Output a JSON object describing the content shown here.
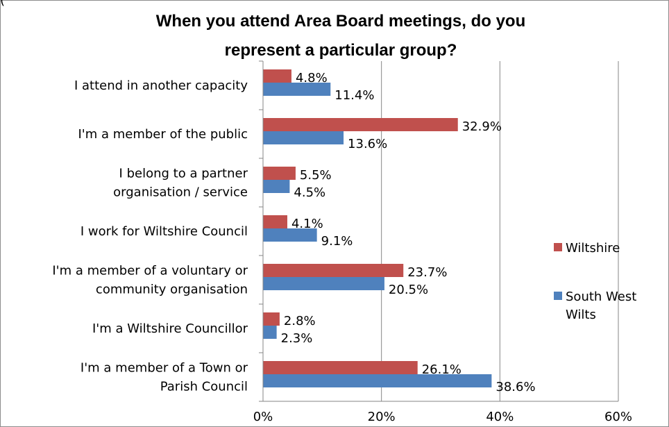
{
  "chart_data": {
    "type": "bar",
    "orientation": "horizontal",
    "title_lines": [
      "When you attend Area Board meetings, do you",
      "represent a particular group?"
    ],
    "categories": [
      [
        "I attend in another capacity"
      ],
      [
        "I'm a member of the public"
      ],
      [
        "I belong to a partner",
        "organisation / service"
      ],
      [
        "I work for Wiltshire Council"
      ],
      [
        "I'm a member of a voluntary or",
        "community organisation"
      ],
      [
        "I'm a Wiltshire Councillor"
      ],
      [
        "I'm a member of a Town or",
        "Parish Council"
      ]
    ],
    "series": [
      {
        "name": "Wiltshire",
        "color": "#c0504d",
        "values": [
          4.8,
          32.9,
          5.5,
          4.1,
          23.7,
          2.8,
          26.1
        ],
        "labels": [
          "4.8%",
          "32.9%",
          "5.5%",
          "4.1%",
          "23.7%",
          "2.8%",
          "26.1%"
        ]
      },
      {
        "name": "South West Wilts",
        "legend_lines": [
          "South West",
          "Wilts"
        ],
        "color": "#4f81bd",
        "values": [
          11.4,
          13.6,
          4.5,
          9.1,
          20.5,
          2.3,
          38.6
        ],
        "labels": [
          "11.4%",
          "13.6%",
          "4.5%",
          "9.1%",
          "20.5%",
          "2.3%",
          "38.6%"
        ]
      }
    ],
    "xlim": [
      0,
      60
    ],
    "xticks": [
      0,
      20,
      40,
      60
    ],
    "xtick_labels": [
      "0%",
      "20%",
      "40%",
      "60%"
    ],
    "grid": true,
    "legend_position": "right",
    "partial_top_left_text": "("
  }
}
